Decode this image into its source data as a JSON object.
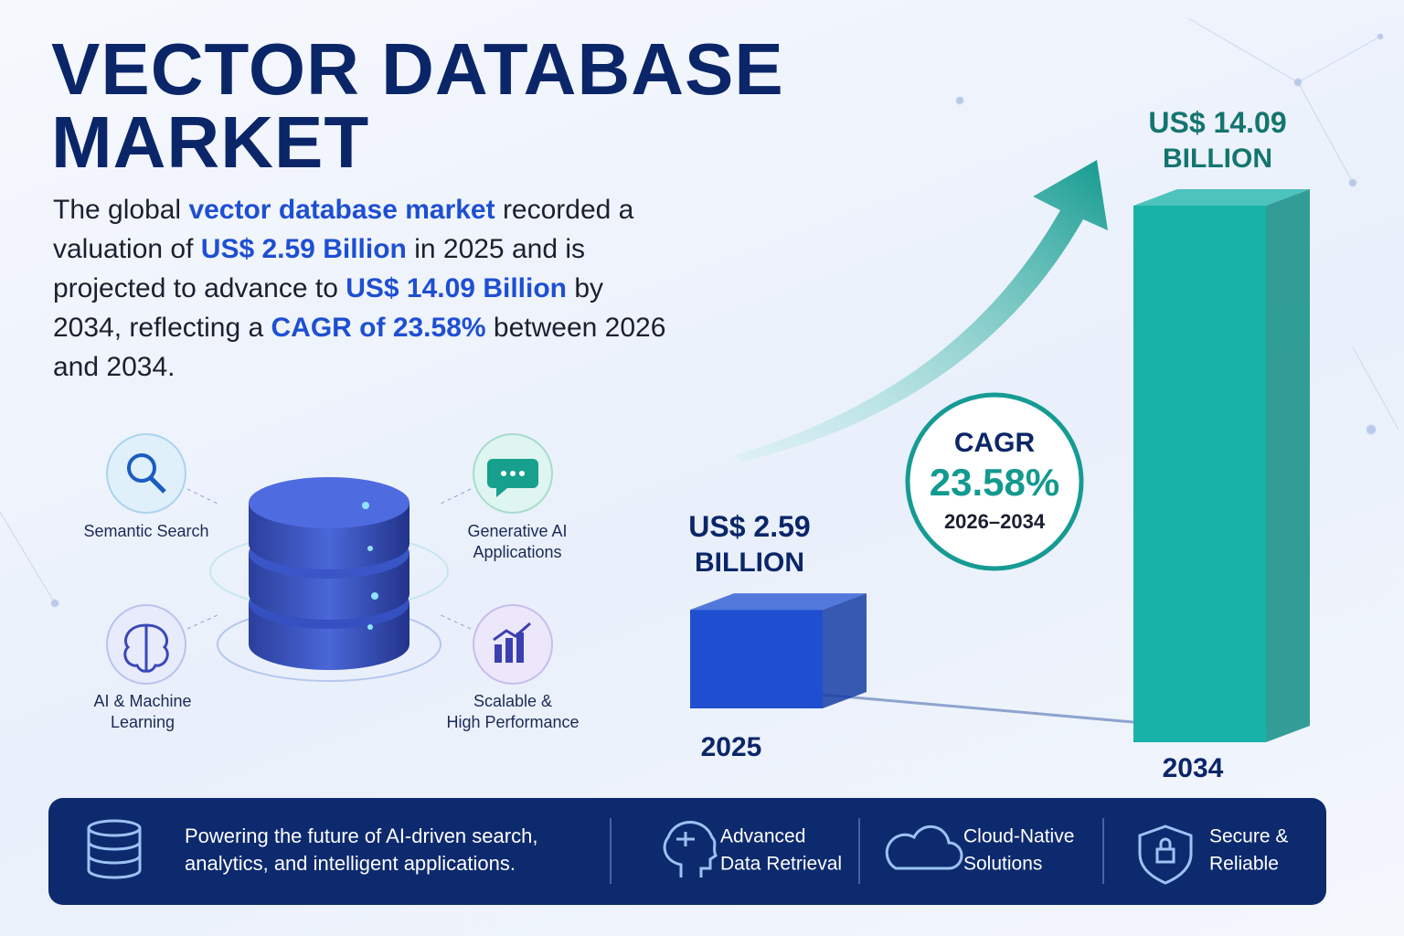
{
  "header": {
    "title_line1": "VECTOR DATABASE",
    "title_line2": "MARKET"
  },
  "intro": [
    {
      "text": "The global ",
      "strong": false
    },
    {
      "text": "vector database market",
      "strong": true
    },
    {
      "text": " recorded a valuation of ",
      "strong": false
    },
    {
      "text": "US$ 2.59 Billion",
      "strong": true
    },
    {
      "text": " in 2025 and is projected to advance to ",
      "strong": false
    },
    {
      "text": "US$ 14.09 Billion",
      "strong": true
    },
    {
      "text": " by 2034, reflecting a ",
      "strong": false
    },
    {
      "text": "CAGR of 23.58%",
      "strong": true
    },
    {
      "text": " between 2026 and 2034.",
      "strong": false
    }
  ],
  "features": [
    {
      "line1": "Semantic Search"
    },
    {
      "line1": "Generative AI",
      "line2": "Applications"
    },
    {
      "line1": "AI & Machine",
      "line2": "Learning"
    },
    {
      "line1": "Scalable &",
      "line2": "High Performance"
    }
  ],
  "bars": [
    {
      "label": "2025",
      "value": 2.59,
      "value_label": "US$ 2.59",
      "unit": "BILLION",
      "color": "#1f4fd0"
    },
    {
      "label": "2034",
      "value": 14.09,
      "value_label": "US$ 14.09",
      "unit": "BILLION",
      "color": "#17b3a8"
    }
  ],
  "cagr": {
    "label": "CAGR",
    "value": "23.58%",
    "period": "2026–2034"
  },
  "footer": [
    {
      "line1": "Powering the future of AI-driven search,",
      "line2": "analytics, and intelligent applications."
    },
    {
      "line1": "Advanced",
      "line2": "Data Retrieval"
    },
    {
      "line1": "Cloud-Native",
      "line2": "Solutions"
    },
    {
      "line1": "Secure &",
      "line2": "Reliable"
    }
  ]
}
